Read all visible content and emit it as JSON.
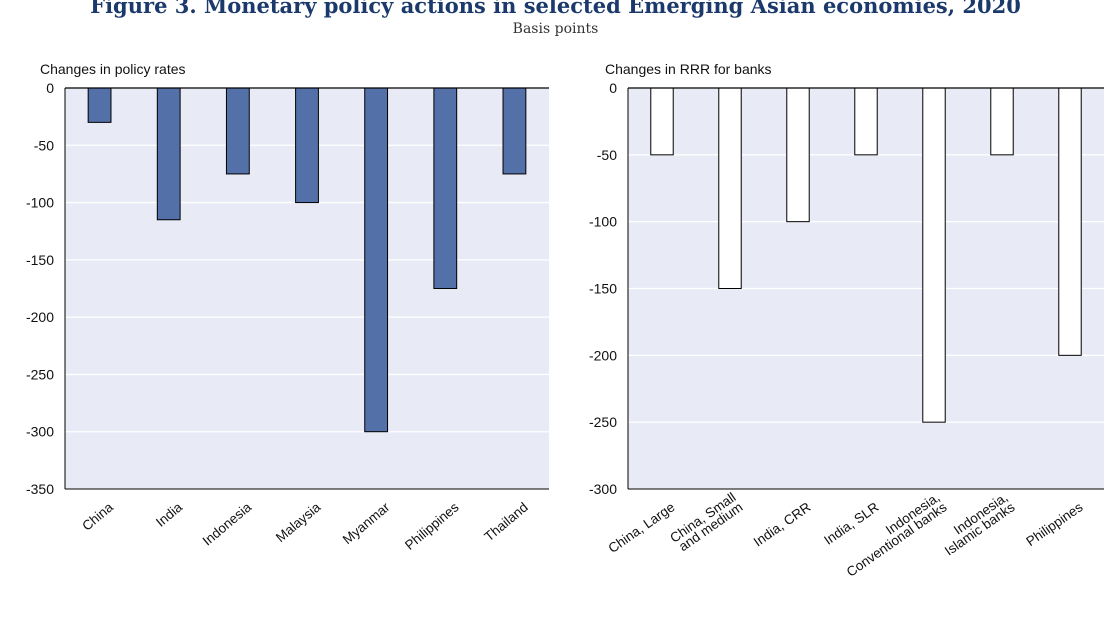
{
  "figure": {
    "title": "Figure 3. Monetary policy actions in selected Emerging Asian economies, 2020",
    "subtitle": "Basis points"
  },
  "chart_data": [
    {
      "type": "bar",
      "panel_label": "Changes in policy rates",
      "categories": [
        [
          "China"
        ],
        [
          "India"
        ],
        [
          "Indonesia"
        ],
        [
          "Malaysia"
        ],
        [
          "Myanmar"
        ],
        [
          "Philippines"
        ],
        [
          "Thailand"
        ]
      ],
      "values": [
        -30,
        -115,
        -75,
        -100,
        -300,
        -175,
        -75
      ],
      "ylim": [
        -350,
        0
      ],
      "yticks": [
        0,
        -50,
        -100,
        -150,
        -200,
        -250,
        -300,
        -350
      ],
      "bar_color": "#5470a8",
      "grid": true
    },
    {
      "type": "bar",
      "panel_label": "Changes in RRR for banks",
      "categories": [
        [
          "China, Large"
        ],
        [
          "China, Small",
          "and medium"
        ],
        [
          "India, CRR"
        ],
        [
          "India, SLR"
        ],
        [
          "Indonesia,",
          "Conventional banks"
        ],
        [
          "Indonesia,",
          "Islamic banks"
        ],
        [
          "Philippines"
        ]
      ],
      "values": [
        -50,
        -150,
        -100,
        -50,
        -250,
        -50,
        -200
      ],
      "ylim": [
        -300,
        0
      ],
      "yticks": [
        0,
        -50,
        -100,
        -150,
        -200,
        -250,
        -300
      ],
      "bar_color": "#ffffff",
      "grid": true
    }
  ],
  "style": {
    "plot_background": "#e8ebf5",
    "grid_color": "#ffffff",
    "axis_color": "#000000",
    "bar_outline": "#000000"
  }
}
